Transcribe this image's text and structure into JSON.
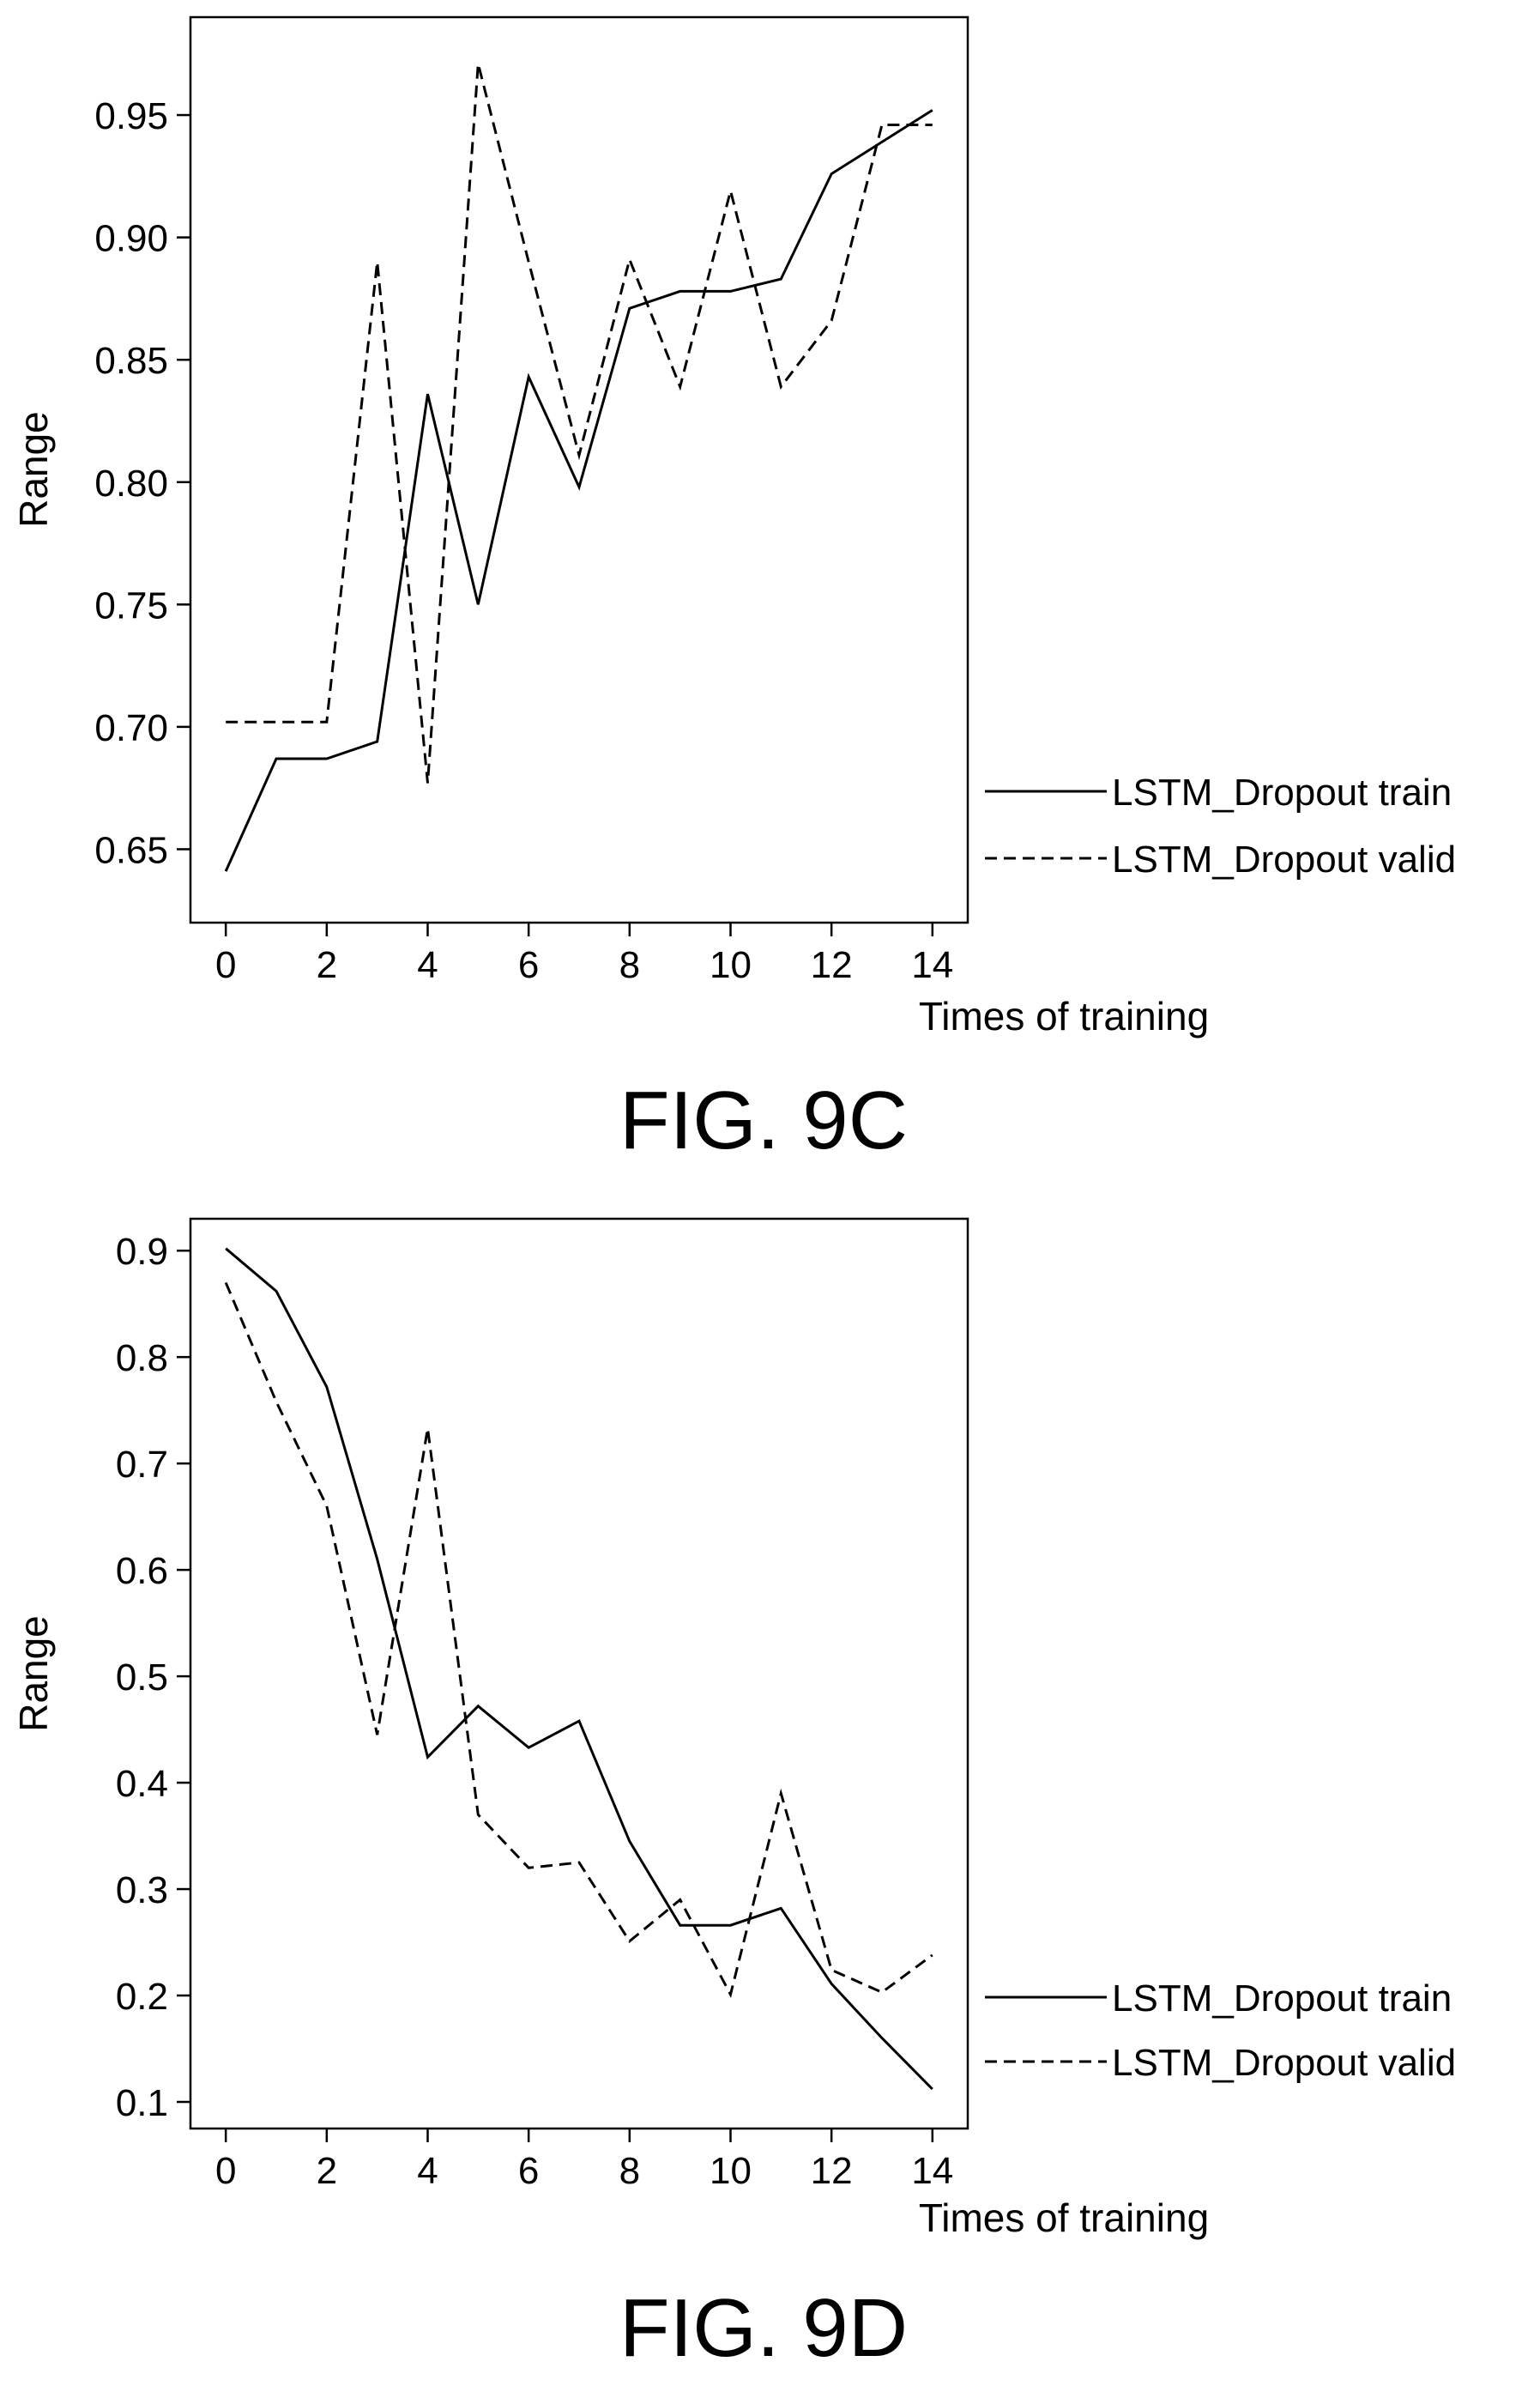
{
  "figures": [
    {
      "caption": "FIG. 9C"
    },
    {
      "caption": "FIG. 9D"
    }
  ],
  "chart_data": [
    {
      "type": "line",
      "xlabel": "Times of training",
      "ylabel": "Range",
      "xlim": [
        -0.7,
        14.7
      ],
      "ylim": [
        0.62,
        0.99
      ],
      "x_ticks": [
        0,
        2,
        4,
        6,
        8,
        10,
        12,
        14
      ],
      "y_ticks": [
        0.65,
        0.7,
        0.75,
        0.8,
        0.85,
        0.9,
        0.95
      ],
      "y_tick_labels": [
        "0.65",
        "0.70",
        "0.75",
        "0.80",
        "0.85",
        "0.90",
        "0.95"
      ],
      "x": [
        0,
        1,
        2,
        3,
        4,
        5,
        6,
        7,
        8,
        9,
        10,
        11,
        12,
        13,
        14
      ],
      "legend_position": "right",
      "series": [
        {
          "name": "LSTM_Dropout train",
          "line_style": "solid",
          "values": [
            0.641,
            0.687,
            0.687,
            0.694,
            0.836,
            0.75,
            0.843,
            0.798,
            0.871,
            0.878,
            0.878,
            0.883,
            0.926,
            0.939,
            0.952
          ]
        },
        {
          "name": "LSTM_Dropout valid",
          "line_style": "dashed",
          "values": [
            0.702,
            0.702,
            0.702,
            0.89,
            0.677,
            0.971,
            0.89,
            0.811,
            0.891,
            0.839,
            0.919,
            0.839,
            0.866,
            0.946,
            0.946
          ]
        }
      ]
    },
    {
      "type": "line",
      "xlabel": "Times of training",
      "ylabel": "Range",
      "xlim": [
        -0.7,
        14.7
      ],
      "ylim": [
        0.075,
        0.93
      ],
      "x_ticks": [
        0,
        2,
        4,
        6,
        8,
        10,
        12,
        14
      ],
      "y_ticks": [
        0.1,
        0.2,
        0.3,
        0.4,
        0.5,
        0.6,
        0.7,
        0.8,
        0.9
      ],
      "y_tick_labels": [
        "0.1",
        "0.2",
        "0.3",
        "0.4",
        "0.5",
        "0.6",
        "0.7",
        "0.8",
        "0.9"
      ],
      "x": [
        0,
        1,
        2,
        3,
        4,
        5,
        6,
        7,
        8,
        9,
        10,
        11,
        12,
        13,
        14
      ],
      "legend_position": "right",
      "series": [
        {
          "name": "LSTM_Dropout train",
          "line_style": "solid",
          "values": [
            0.902,
            0.862,
            0.772,
            0.61,
            0.424,
            0.472,
            0.433,
            0.458,
            0.345,
            0.266,
            0.266,
            0.282,
            0.211,
            0.16,
            0.112
          ]
        },
        {
          "name": "LSTM_Dropout valid",
          "line_style": "dashed",
          "values": [
            0.87,
            0.758,
            0.66,
            0.445,
            0.733,
            0.37,
            0.32,
            0.325,
            0.251,
            0.29,
            0.201,
            0.39,
            0.224,
            0.203,
            0.238
          ]
        }
      ]
    }
  ]
}
